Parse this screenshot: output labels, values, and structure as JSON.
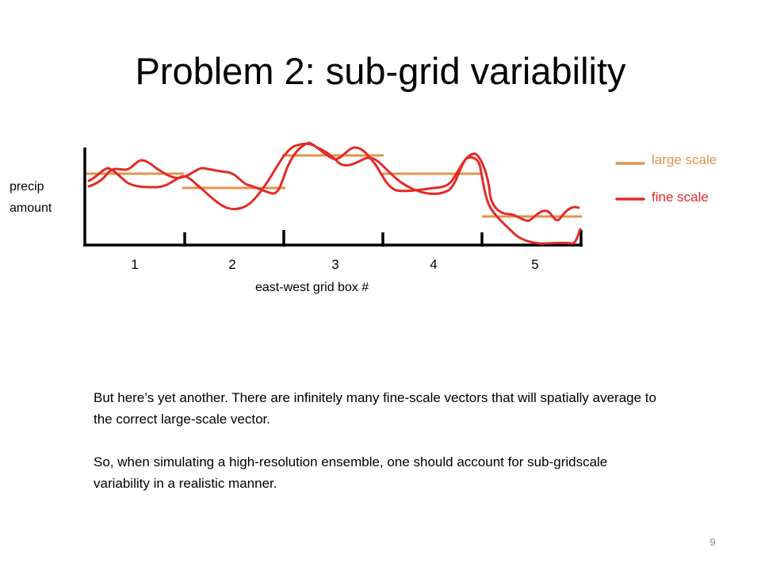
{
  "slide": {
    "title": "Problem 2: sub-grid variability",
    "page_number": "9",
    "paragraphs": [
      "But here’s yet another.  There are infinitely many fine-scale vectors that will spatially average to the correct large-scale vector.",
      "So, when simulating a high-resolution ensemble, one should account for sub-gridscale variability in a realistic manner."
    ]
  },
  "diagram": {
    "y_label_line1": "precip",
    "y_label_line2": "amount",
    "x_label": "east-west grid box #",
    "grid_boxes": [
      "1",
      "2",
      "3",
      "4",
      "5"
    ],
    "legend": [
      {
        "label": "large scale",
        "color": "#e4914e"
      },
      {
        "label": "fine scale",
        "color": "#e32a26"
      }
    ],
    "colors": {
      "large_scale": "#e4914e",
      "fine_scale": "#e32a26",
      "axes": "#000000"
    }
  }
}
